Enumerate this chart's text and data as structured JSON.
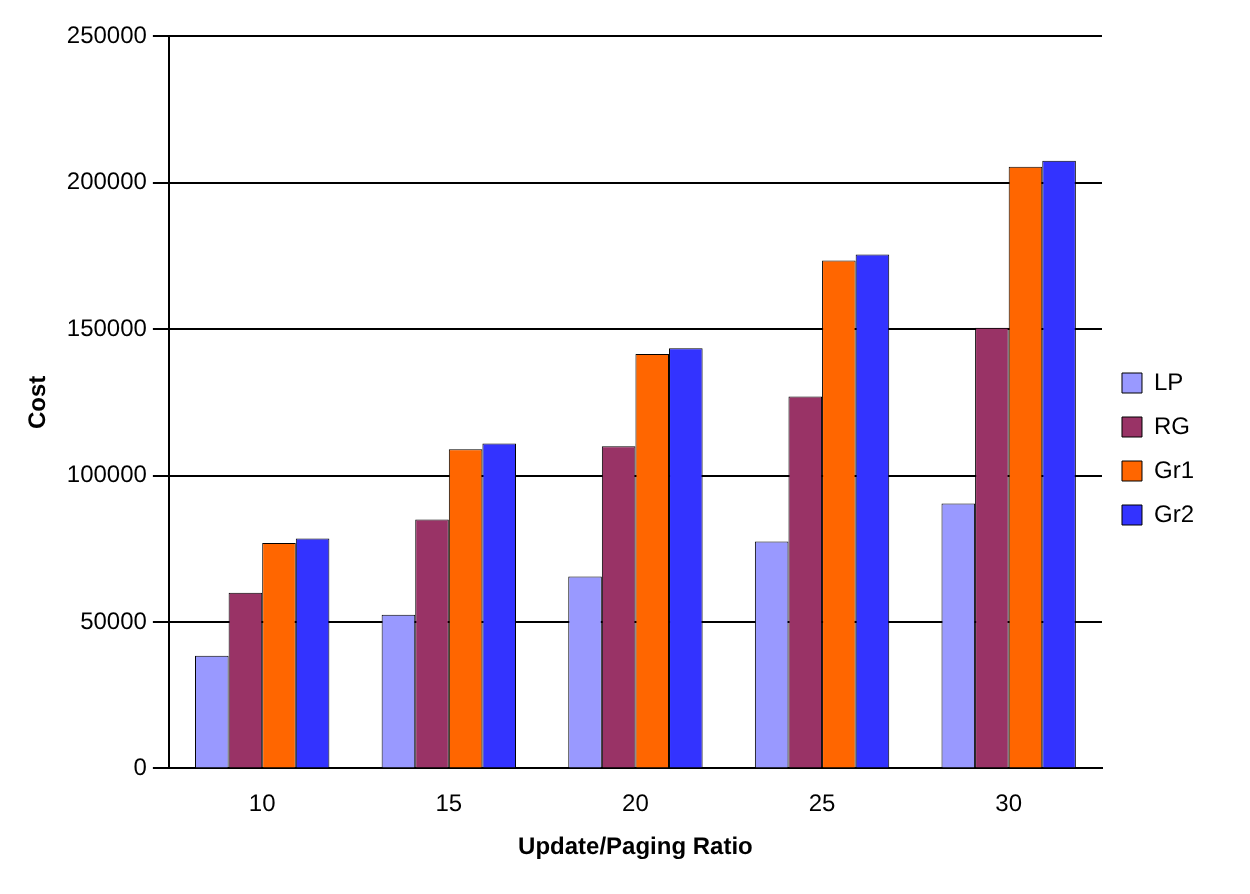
{
  "chart_data": {
    "type": "bar",
    "xlabel": "Update/Paging Ratio",
    "ylabel": "Cost",
    "categories": [
      "10",
      "15",
      "20",
      "25",
      "30"
    ],
    "series": [
      {
        "name": "LP",
        "color": "#9999ff",
        "values": [
          38500,
          52500,
          65500,
          77500,
          90500
        ]
      },
      {
        "name": "RG",
        "color": "#993366",
        "values": [
          60000,
          85000,
          110000,
          127000,
          150500
        ]
      },
      {
        "name": "Gr1",
        "color": "#ff6600",
        "values": [
          77000,
          109000,
          141500,
          173500,
          205500
        ]
      },
      {
        "name": "Gr2",
        "color": "#3333ff",
        "values": [
          78500,
          111000,
          143500,
          175500,
          207500
        ]
      }
    ],
    "ylim": [
      0,
      250000
    ],
    "yticks": [
      0,
      50000,
      100000,
      150000,
      200000,
      250000
    ],
    "grid": "y",
    "legend": "right"
  }
}
